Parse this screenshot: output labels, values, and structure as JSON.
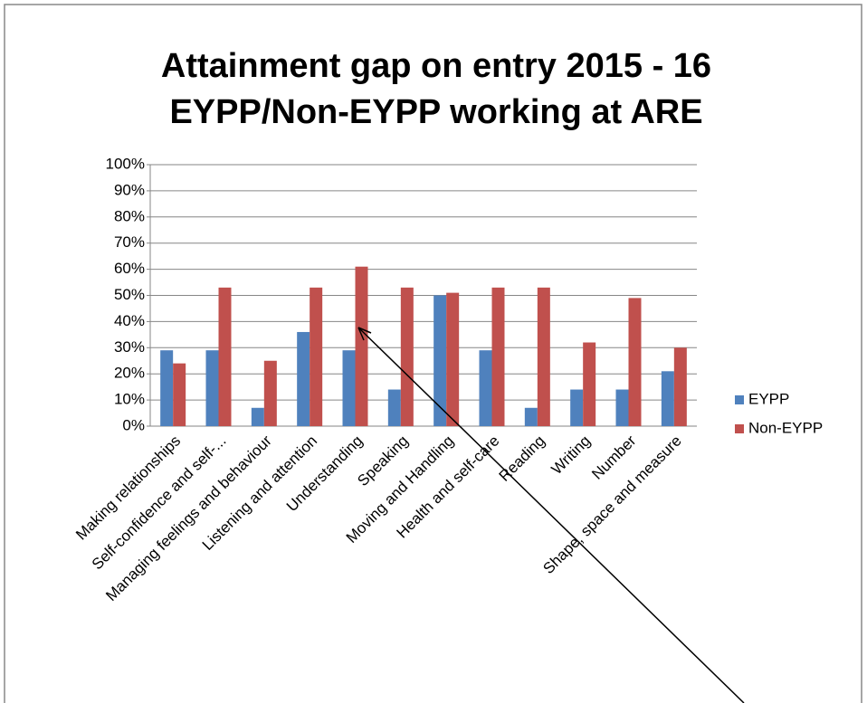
{
  "chart_data": {
    "type": "bar",
    "title": [
      "Attainment gap on entry 2015 - 16",
      "EYPP/Non-EYPP working at ARE"
    ],
    "categories": [
      "Making relationships",
      "Self-confidence and self-...",
      "Managing feelings and behaviour",
      "Listening and attention",
      "Understanding",
      "Speaking",
      "Moving and Handling",
      "Health and self-care",
      "Reading",
      "Writing",
      "Number",
      "Shape, space and measure"
    ],
    "series": [
      {
        "name": "EYPP",
        "color": "#4f81bd",
        "values": [
          29,
          29,
          7,
          36,
          29,
          14,
          50,
          29,
          7,
          14,
          14,
          21
        ]
      },
      {
        "name": "Non-EYPP",
        "color": "#c0504d",
        "values": [
          24,
          53,
          25,
          53,
          61,
          53,
          51,
          53,
          53,
          32,
          49,
          30
        ]
      }
    ],
    "ylim": [
      0,
      100
    ],
    "yticks": [
      {
        "value": 0,
        "label": "0%"
      },
      {
        "value": 10,
        "label": "10%"
      },
      {
        "value": 20,
        "label": "20%"
      },
      {
        "value": 30,
        "label": "30%"
      },
      {
        "value": 40,
        "label": "40%"
      },
      {
        "value": 50,
        "label": "50%"
      },
      {
        "value": 60,
        "label": "60%"
      },
      {
        "value": 70,
        "label": "70%"
      },
      {
        "value": 80,
        "label": "80%"
      },
      {
        "value": 90,
        "label": "90%"
      },
      {
        "value": 100,
        "label": "100%"
      }
    ],
    "grid": true,
    "legend": "right"
  }
}
